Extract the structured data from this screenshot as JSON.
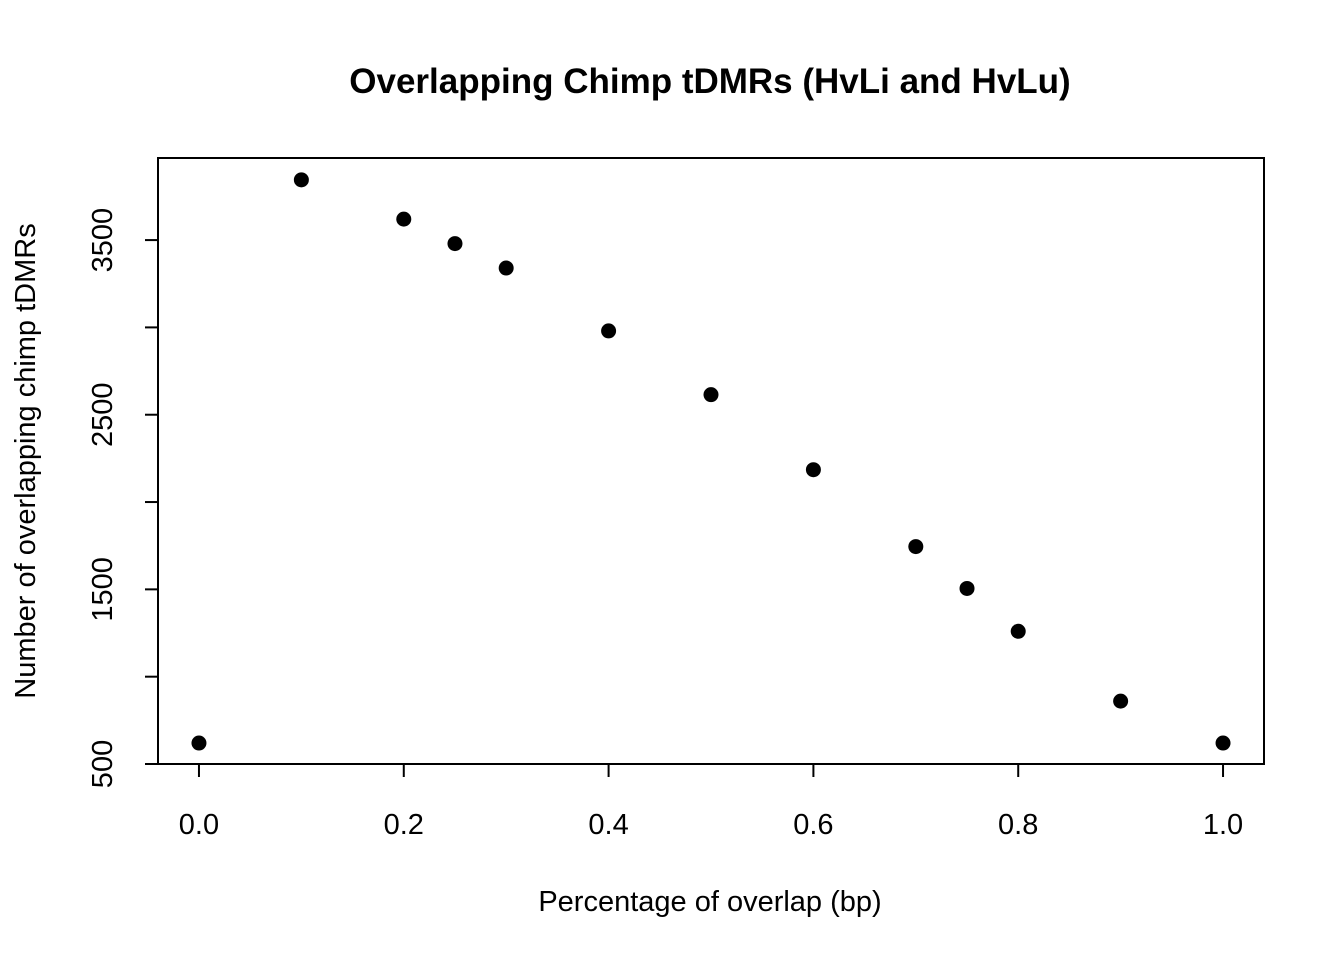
{
  "chart_data": {
    "type": "scatter",
    "title": "Overlapping Chimp tDMRs (HvLi and HvLu)",
    "xlabel": "Percentage of overlap (bp)",
    "ylabel": "Number of overlapping chimp tDMRs",
    "xlim": [
      -0.04,
      1.04
    ],
    "ylim": [
      500,
      3970
    ],
    "xticks": [
      0.0,
      0.2,
      0.4,
      0.6,
      0.8,
      1.0
    ],
    "xtick_labels": [
      "0.0",
      "0.2",
      "0.4",
      "0.6",
      "0.8",
      "1.0"
    ],
    "yticks": [
      500,
      1000,
      1500,
      2000,
      2500,
      3000,
      3500
    ],
    "ytick_labels": [
      "500",
      "",
      "1500",
      "",
      "2500",
      "",
      "3500"
    ],
    "grid": false,
    "legend": "none",
    "point_color": "#000000",
    "series": [
      {
        "x": [
          0.0,
          0.1,
          0.2,
          0.25,
          0.3,
          0.4,
          0.5,
          0.6,
          0.7,
          0.75,
          0.8,
          0.9,
          1.0
        ],
        "y": [
          620,
          3845,
          3620,
          3480,
          3340,
          2980,
          2615,
          2185,
          1745,
          1505,
          1260,
          860,
          620
        ]
      }
    ]
  }
}
